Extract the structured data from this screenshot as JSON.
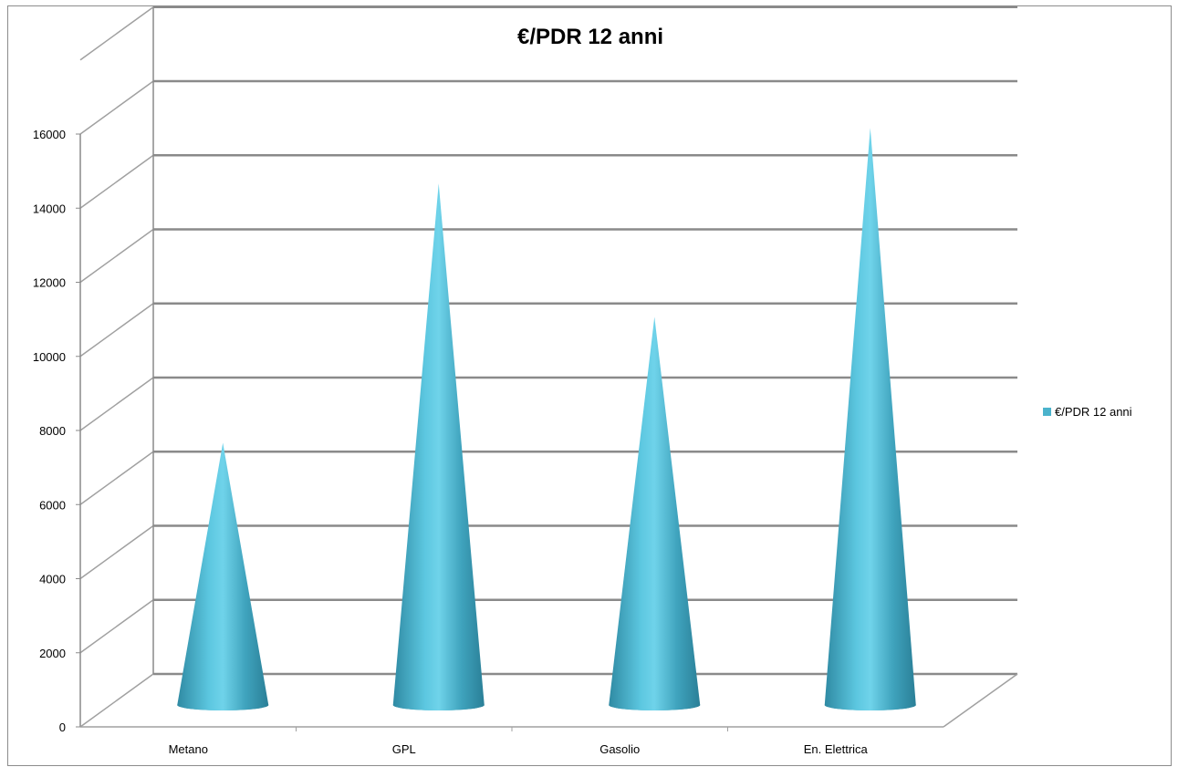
{
  "chart_data": {
    "type": "bar",
    "style": "3d-cone",
    "title": "€/PDR 12 anni",
    "categories": [
      "Metano",
      "GPL",
      "Gasolio",
      "En. Elettrica"
    ],
    "series": [
      {
        "name": "€/PDR 12 anni",
        "values": [
          7200,
          14200,
          10600,
          15700
        ]
      }
    ],
    "yticks": [
      "0",
      "2000",
      "4000",
      "6000",
      "8000",
      "10000",
      "12000",
      "14000",
      "16000"
    ],
    "ylim": [
      0,
      18000
    ],
    "grid": true,
    "legend_position": "right",
    "colors": {
      "cone": "#4bb3cc",
      "cone_light": "#6fd3ea",
      "cone_dark": "#2f8aa3",
      "grid": "#8a8a8a"
    }
  }
}
